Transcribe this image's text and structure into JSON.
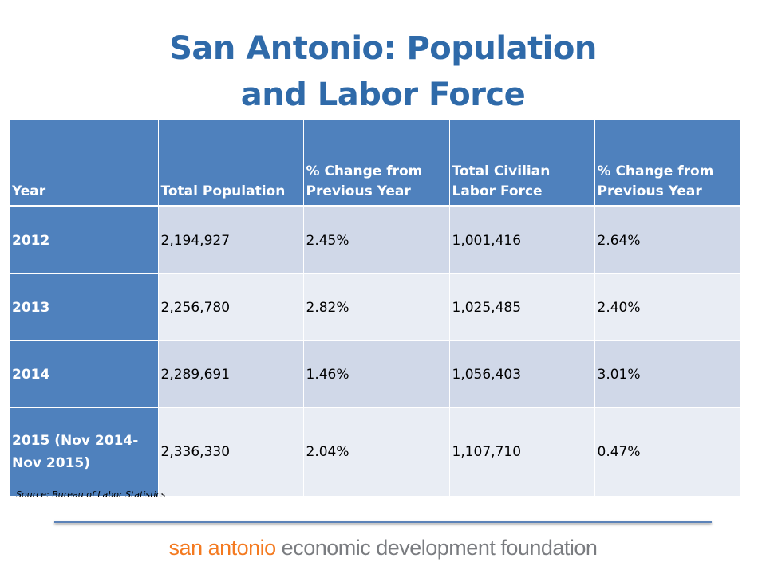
{
  "title": {
    "line1": "San Antonio: Population",
    "line2": "and Labor Force"
  },
  "table": {
    "headers": [
      "Year",
      "Total Population",
      "% Change from Previous Year",
      "Total Civilian Labor Force",
      "% Change from Previous Year"
    ],
    "rows": [
      [
        "2012",
        "2,194,927",
        "2.45%",
        "1,001,416",
        "2.64%"
      ],
      [
        "2013",
        "2,256,780",
        "2.82%",
        "1,025,485",
        "2.40%"
      ],
      [
        "2014",
        "2,289,691",
        "1.46%",
        "1,056,403",
        "3.01%"
      ],
      [
        "2015 (Nov 2014-Nov 2015)",
        "2,336,330",
        "2.04%",
        "1,107,710",
        "0.47%"
      ]
    ]
  },
  "source": "Source: Bureau of Labor Statistics",
  "logo": {
    "part1": "san antonio",
    "part2": " economic development foundation"
  },
  "colors": {
    "title": "#2f6aa9",
    "header_fill": "#4f81bd",
    "row_odd": "#d0d8e8",
    "row_even": "#e9edf4",
    "logo_orange": "#f47a20",
    "logo_gray": "#7a7c80"
  }
}
